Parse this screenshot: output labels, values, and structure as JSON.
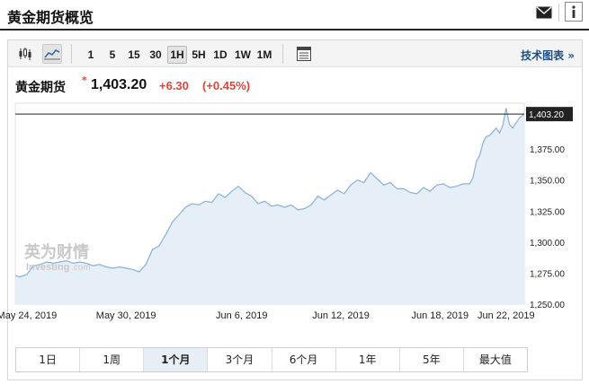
{
  "header": {
    "title": "黄金期货概览",
    "mail_icon": "envelope-icon",
    "info_icon": "info-icon"
  },
  "toolbar": {
    "chart_type_icons": [
      "candlestick-icon",
      "area-chart-icon"
    ],
    "timeframes": [
      "1",
      "5",
      "15",
      "30",
      "1H",
      "5H",
      "1D",
      "1W",
      "1M"
    ],
    "selected_timeframe": "1H",
    "table_icon": "table-icon",
    "technical_link": "技术图表 »"
  },
  "quote": {
    "name": "黄金期货",
    "marker": "*",
    "price": "1,403.20",
    "change": "+6.30",
    "change_pct": "(+0.45%)",
    "up_color": "#e0453b"
  },
  "watermark": {
    "cn": "英为财情",
    "en_prefix": "Investing",
    "en_suffix": ".com"
  },
  "ranges": {
    "items": [
      "1日",
      "1周",
      "1个月",
      "3个月",
      "6个月",
      "1年",
      "5年",
      "最大值"
    ],
    "selected": "1个月"
  },
  "chart_data": {
    "type": "area",
    "title": "",
    "xlabel": "",
    "ylabel": "",
    "ylim": [
      1250,
      1412
    ],
    "y_ticks": [
      "1,250.00",
      "1,275.00",
      "1,300.00",
      "1,325.00",
      "1,350.00",
      "1,375.00"
    ],
    "y_tick_values": [
      1250,
      1275,
      1300,
      1325,
      1350,
      1375
    ],
    "x_ticks": [
      "May 24, 2019",
      "May 30, 2019",
      "Jun 6, 2019",
      "Jun 12, 2019",
      "Jun 18, 2019",
      "Jun 22, 2019"
    ],
    "x_tick_days": [
      0,
      6,
      13,
      19,
      25,
      29
    ],
    "last_price_label": "1,403.20",
    "last_price_value": 1403.2,
    "grid": false,
    "line_color": "#8ab0d6",
    "fill_color": "#e6eef7",
    "series": [
      {
        "x": [
          -0.7,
          -0.4,
          0,
          0.4,
          0.8,
          1.2,
          1.6,
          2,
          2.4,
          2.8,
          3.2,
          3.6,
          4,
          4.4,
          4.8,
          5.2,
          5.6,
          6,
          6.4,
          6.8,
          7.2,
          7.6,
          8,
          8.4,
          8.8,
          9.2,
          9.6,
          10,
          10.4,
          10.8,
          11.2,
          11.6,
          12,
          12.4,
          12.8,
          13.2,
          13.6,
          14,
          14.4,
          14.8,
          15.2,
          15.6,
          16,
          16.4,
          16.8,
          17.2,
          17.6,
          18,
          18.4,
          18.8,
          19.2,
          19.6,
          20,
          20.4,
          20.8,
          21.2,
          21.6,
          22,
          22.4,
          22.8,
          23.2,
          23.6,
          24,
          24.4,
          24.8,
          25.2,
          25.6,
          26,
          26.4,
          26.8,
          27,
          27.2,
          27.4,
          27.6,
          27.8,
          28,
          28.2,
          28.4,
          28.6,
          28.8,
          29,
          29.2,
          29.4,
          29.6,
          29.8,
          30.1
        ],
        "y": [
          1273,
          1272,
          1274,
          1281,
          1282,
          1284,
          1283,
          1284,
          1285,
          1283,
          1284,
          1283,
          1281,
          1282,
          1280,
          1279,
          1280,
          1279,
          1278,
          1276,
          1282,
          1294,
          1297,
          1306,
          1316,
          1322,
          1328,
          1331,
          1330,
          1333,
          1332,
          1339,
          1336,
          1341,
          1345,
          1340,
          1337,
          1331,
          1333,
          1329,
          1330,
          1328,
          1330,
          1326,
          1327,
          1330,
          1337,
          1334,
          1338,
          1342,
          1339,
          1346,
          1350,
          1348,
          1356,
          1351,
          1346,
          1348,
          1343,
          1343,
          1340,
          1339,
          1344,
          1341,
          1346,
          1347,
          1344,
          1345,
          1347,
          1347,
          1352,
          1365,
          1370,
          1380,
          1385,
          1386,
          1389,
          1392,
          1388,
          1394,
          1408,
          1395,
          1392,
          1396,
          1400,
          1403.2
        ]
      }
    ]
  }
}
